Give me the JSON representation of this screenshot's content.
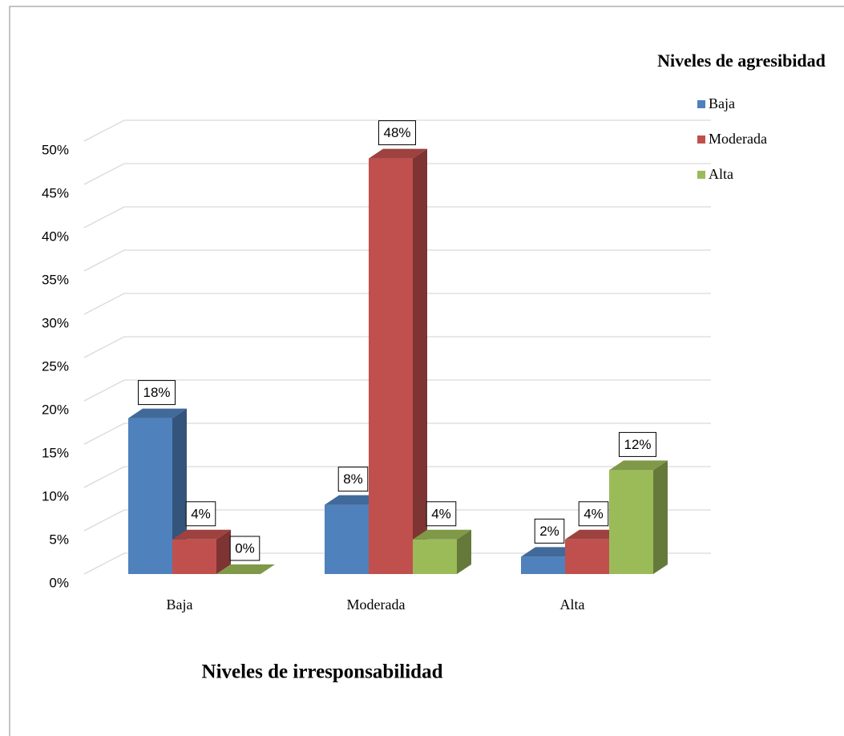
{
  "chart_data": {
    "type": "bar3d",
    "x_label": "Niveles de irresponsabilidad",
    "legend_title": "Niveles de agresibidad",
    "legend": "right",
    "categories": [
      "Baja",
      "Moderada",
      "Alta"
    ],
    "series": [
      {
        "name": "Baja",
        "color": "#4f81bd",
        "values": [
          18,
          8,
          2
        ],
        "value_labels": [
          "18%",
          "8%",
          "2%"
        ]
      },
      {
        "name": "Moderada",
        "color": "#c0504d",
        "values": [
          4,
          48,
          4
        ],
        "value_labels": [
          "4%",
          "48%",
          "4%"
        ]
      },
      {
        "name": "Alta",
        "color": "#9bbb59",
        "values": [
          0,
          4,
          12
        ],
        "value_labels": [
          "0%",
          "4%",
          "12%"
        ]
      }
    ],
    "ylim": [
      0,
      50
    ],
    "yticks": [
      {
        "value": 0,
        "label": "0%"
      },
      {
        "value": 5,
        "label": "5%"
      },
      {
        "value": 10,
        "label": "10%"
      },
      {
        "value": 15,
        "label": "15%"
      },
      {
        "value": 20,
        "label": "20%"
      },
      {
        "value": 25,
        "label": "25%"
      },
      {
        "value": 30,
        "label": "30%"
      },
      {
        "value": 35,
        "label": "35%"
      },
      {
        "value": 40,
        "label": "40%"
      },
      {
        "value": 45,
        "label": "45%"
      },
      {
        "value": 50,
        "label": "50%"
      }
    ],
    "grid": true
  }
}
